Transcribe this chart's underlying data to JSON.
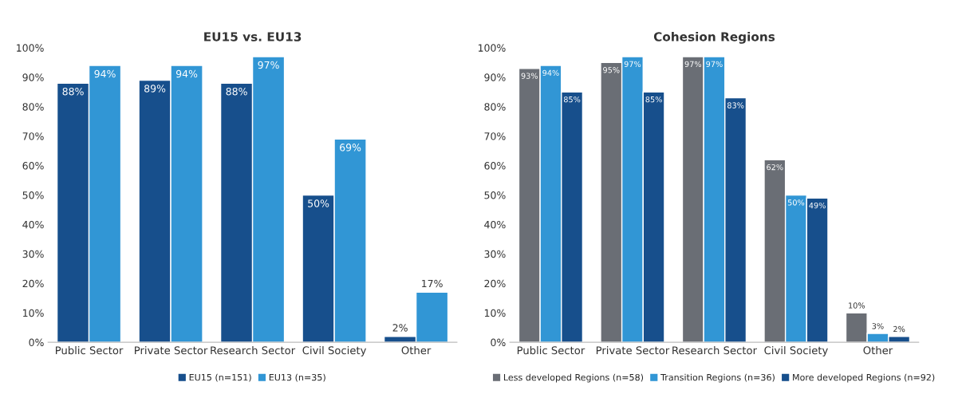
{
  "chart_data": [
    {
      "type": "bar",
      "title": "EU15 vs. EU13",
      "categories": [
        "Public Sector",
        "Private Sector",
        "Research Sector",
        "Civil Society",
        "Other"
      ],
      "series": [
        {
          "name": "EU15 (n=151)",
          "color": "#174f8c",
          "values": [
            88,
            89,
            88,
            50,
            2
          ],
          "value_labels": [
            "88%",
            "89%",
            "88%",
            "50%",
            "2%"
          ]
        },
        {
          "name": "EU13 (n=35)",
          "color": "#3196d5",
          "values": [
            94,
            94,
            97,
            69,
            17
          ],
          "value_labels": [
            "94%",
            "94%",
            "97%",
            "69%",
            "17%"
          ]
        }
      ],
      "ylim": [
        0,
        100
      ],
      "yticks": [
        {
          "value": 0,
          "label": "0%"
        },
        {
          "value": 10,
          "label": "10%"
        },
        {
          "value": 20,
          "label": "20%"
        },
        {
          "value": 30,
          "label": "30%"
        },
        {
          "value": 40,
          "label": "40%"
        },
        {
          "value": 50,
          "label": "50%"
        },
        {
          "value": 60,
          "label": "60%"
        },
        {
          "value": 70,
          "label": "70%"
        },
        {
          "value": 80,
          "label": "80%"
        },
        {
          "value": 90,
          "label": "90%"
        },
        {
          "value": 100,
          "label": "100%"
        }
      ],
      "legend": "bottom",
      "grid": false
    },
    {
      "type": "bar",
      "title": "Cohesion Regions",
      "categories": [
        "Public Sector",
        "Private Sector",
        "Research Sector",
        "Civil Society",
        "Other"
      ],
      "series": [
        {
          "name": "Less developed Regions (n=58)",
          "color": "#6a6e75",
          "values": [
            93,
            95,
            97,
            62,
            10
          ],
          "value_labels": [
            "93%",
            "95%",
            "97%",
            "62%",
            "10%"
          ]
        },
        {
          "name": "Transition Regions (n=36)",
          "color": "#3196d5",
          "values": [
            94,
            97,
            97,
            50,
            3
          ],
          "value_labels": [
            "94%",
            "97%",
            "97%",
            "50%",
            "3%"
          ]
        },
        {
          "name": "More developed Regions (n=92)",
          "color": "#174f8c",
          "values": [
            85,
            85,
            83,
            49,
            2
          ],
          "value_labels": [
            "85%",
            "85%",
            "83%",
            "49%",
            "2%"
          ]
        }
      ],
      "ylim": [
        0,
        100
      ],
      "yticks": [
        {
          "value": 0,
          "label": "0%"
        },
        {
          "value": 10,
          "label": "10%"
        },
        {
          "value": 20,
          "label": "20%"
        },
        {
          "value": 30,
          "label": "30%"
        },
        {
          "value": 40,
          "label": "40%"
        },
        {
          "value": 50,
          "label": "50%"
        },
        {
          "value": 60,
          "label": "60%"
        },
        {
          "value": 70,
          "label": "70%"
        },
        {
          "value": 80,
          "label": "80%"
        },
        {
          "value": 90,
          "label": "90%"
        },
        {
          "value": 100,
          "label": "100%"
        }
      ],
      "legend": "bottom",
      "grid": false
    }
  ]
}
